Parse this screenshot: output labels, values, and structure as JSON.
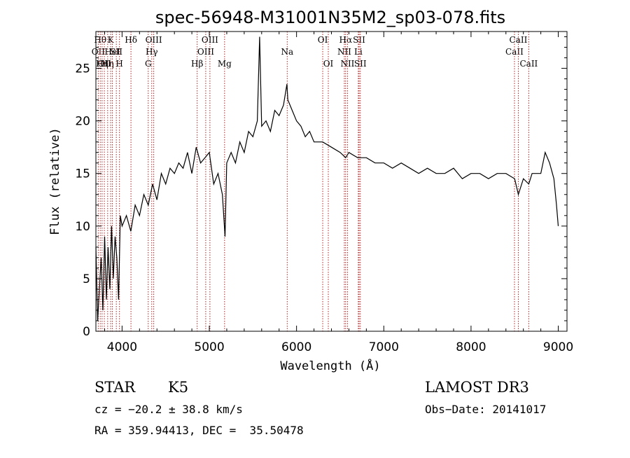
{
  "chart_data": {
    "type": "line",
    "title": "spec-56948-M31001N35M2_sp03-078.fits",
    "xlabel": "Wavelength (Å)",
    "ylabel": "Flux (relative)",
    "xlim": [
      3700,
      9100
    ],
    "ylim": [
      0,
      28.5
    ],
    "xticks": [
      4000,
      5000,
      6000,
      7000,
      8000,
      9000
    ],
    "xtick_labels": [
      "4000",
      "5000",
      "6000",
      "7000",
      "8000",
      "9000"
    ],
    "yticks": [
      0,
      5,
      10,
      15,
      20,
      25
    ],
    "ytick_labels": [
      "0",
      "5",
      "10",
      "15",
      "20",
      "25"
    ],
    "line_color": "#000000",
    "marker_color": "#b22222",
    "series": [
      {
        "name": "flux",
        "x": [
          3700,
          3720,
          3740,
          3760,
          3780,
          3800,
          3820,
          3840,
          3860,
          3880,
          3900,
          3920,
          3940,
          3960,
          3980,
          4000,
          4050,
          4100,
          4150,
          4200,
          4250,
          4300,
          4350,
          4400,
          4450,
          4500,
          4550,
          4600,
          4650,
          4700,
          4750,
          4800,
          4850,
          4900,
          4950,
          5000,
          5050,
          5100,
          5150,
          5180,
          5200,
          5250,
          5300,
          5350,
          5400,
          5450,
          5500,
          5550,
          5577,
          5600,
          5650,
          5700,
          5750,
          5800,
          5850,
          5890,
          5900,
          5950,
          6000,
          6050,
          6100,
          6150,
          6200,
          6300,
          6400,
          6500,
          6563,
          6600,
          6700,
          6800,
          6900,
          7000,
          7100,
          7200,
          7300,
          7400,
          7500,
          7600,
          7700,
          7800,
          7900,
          8000,
          8100,
          8200,
          8300,
          8400,
          8500,
          8542,
          8600,
          8662,
          8700,
          8800,
          8850,
          8900,
          8950,
          8980,
          9000
        ],
        "y": [
          8,
          1,
          4,
          7,
          2,
          9,
          3,
          8,
          4,
          10,
          5,
          9,
          7,
          3,
          11,
          10,
          11,
          9.5,
          12,
          11,
          13,
          12,
          14,
          12.5,
          15,
          14,
          15.5,
          15,
          16,
          15.5,
          17,
          15,
          17.5,
          16,
          16.5,
          17,
          14,
          15,
          13,
          9,
          16,
          17,
          16,
          18,
          17,
          19,
          18.5,
          20,
          28,
          19.5,
          20,
          19,
          21,
          20.5,
          21.5,
          23.5,
          22,
          21,
          20,
          19.5,
          18.5,
          19,
          18,
          18,
          17.5,
          17,
          16.5,
          17,
          16.5,
          16.5,
          16,
          16,
          15.5,
          16,
          15.5,
          15,
          15.5,
          15,
          15,
          15.5,
          14.5,
          15,
          15,
          14.5,
          15,
          15,
          14.5,
          13,
          14.5,
          14,
          15,
          15,
          17,
          16,
          14.5,
          12,
          10
        ]
      }
    ],
    "line_markers": [
      {
        "wavelength": 3727,
        "label": "OII",
        "row": 2
      },
      {
        "wavelength": 3750,
        "label": "Hθ",
        "row": 1
      },
      {
        "wavelength": 3771,
        "label": "Hη",
        "row": 3
      },
      {
        "wavelength": 3797,
        "label": "OII",
        "row": 3
      },
      {
        "wavelength": 3835,
        "label": "Hη",
        "row": 3
      },
      {
        "wavelength": 3869,
        "label": "K",
        "row": 1
      },
      {
        "wavelength": 3889,
        "label": "HeI",
        "row": 2
      },
      {
        "wavelength": 3934,
        "label": "SII",
        "row": 2
      },
      {
        "wavelength": 3970,
        "label": "H",
        "row": 3
      },
      {
        "wavelength": 4102,
        "label": "Hδ",
        "row": 1
      },
      {
        "wavelength": 4300,
        "label": "G",
        "row": 3
      },
      {
        "wavelength": 4340,
        "label": "Hγ",
        "row": 2
      },
      {
        "wavelength": 4363,
        "label": "OIII",
        "row": 1
      },
      {
        "wavelength": 4861,
        "label": "Hβ",
        "row": 3
      },
      {
        "wavelength": 4959,
        "label": "OIII",
        "row": 2
      },
      {
        "wavelength": 5007,
        "label": "OIII",
        "row": 1
      },
      {
        "wavelength": 5175,
        "label": "Mg",
        "row": 3
      },
      {
        "wavelength": 5893,
        "label": "Na",
        "row": 2
      },
      {
        "wavelength": 6300,
        "label": "OI",
        "row": 1
      },
      {
        "wavelength": 6364,
        "label": "OI",
        "row": 3
      },
      {
        "wavelength": 6548,
        "label": "NII",
        "row": 2
      },
      {
        "wavelength": 6563,
        "label": "Hα",
        "row": 1
      },
      {
        "wavelength": 6584,
        "label": "NII",
        "row": 3
      },
      {
        "wavelength": 6708,
        "label": "Li",
        "row": 2
      },
      {
        "wavelength": 6717,
        "label": "SII",
        "row": 1
      },
      {
        "wavelength": 6731,
        "label": "SII",
        "row": 3
      },
      {
        "wavelength": 8498,
        "label": "CaII",
        "row": 2
      },
      {
        "wavelength": 8542,
        "label": "CaII",
        "row": 1
      },
      {
        "wavelength": 8662,
        "label": "CaII",
        "row": 3
      }
    ]
  },
  "info": {
    "class_label": "STAR",
    "subclass_label": "K5",
    "survey": "LAMOST DR3",
    "cz": "cz = −20.2 ± 38.8 km/s",
    "obs_date": "Obs−Date: 20141017",
    "coords": "RA = 359.94413, DEC =  35.50478"
  }
}
